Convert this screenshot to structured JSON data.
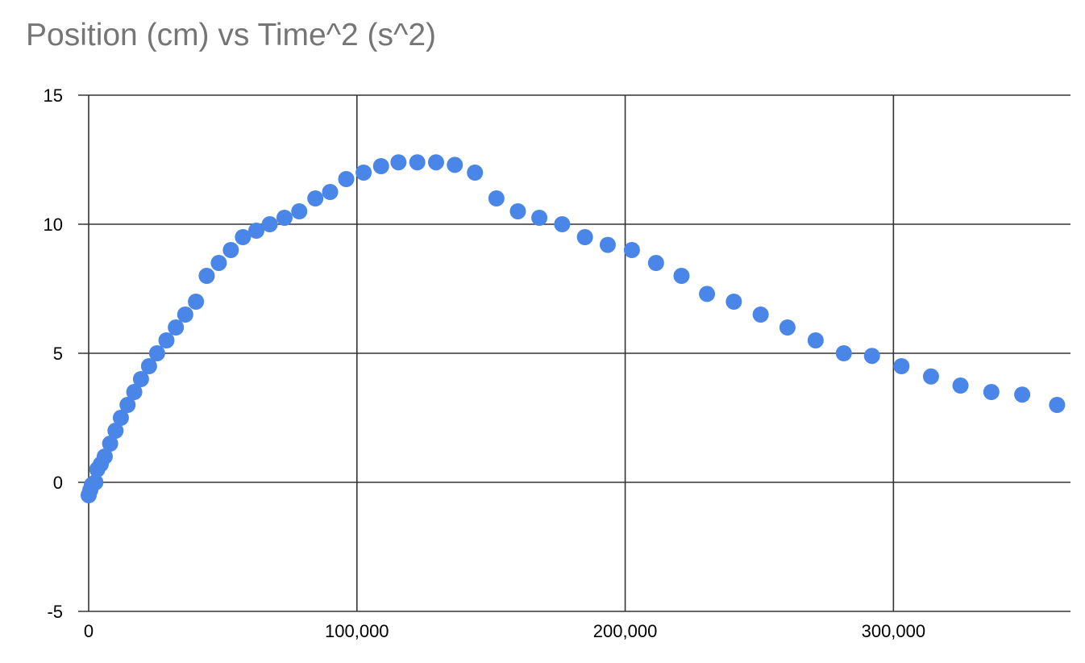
{
  "chart_data": {
    "type": "scatter",
    "title": "Position (cm) vs Time^2 (s^2)",
    "xlabel": "",
    "ylabel": "",
    "xlim": [
      0,
      366000
    ],
    "ylim": [
      -5,
      15
    ],
    "x_ticks": [
      0,
      100000,
      200000,
      300000
    ],
    "x_tick_labels": [
      "0",
      "100,000",
      "200,000",
      "300,000"
    ],
    "y_ticks": [
      -5,
      0,
      5,
      10,
      15
    ],
    "y_tick_labels": [
      "-5",
      "0",
      "5",
      "10",
      "15"
    ],
    "grid": true,
    "legend": "none",
    "point_color": "#4A86E8",
    "series": [
      {
        "points": [
          [
            0,
            -0.5
          ],
          [
            600,
            -0.3
          ],
          [
            1200,
            -0.1
          ],
          [
            2500,
            0
          ],
          [
            3200,
            0.5
          ],
          [
            4500,
            0.7
          ],
          [
            6000,
            1.0
          ],
          [
            8000,
            1.5
          ],
          [
            10000,
            2.0
          ],
          [
            12000,
            2.5
          ],
          [
            14500,
            3.0
          ],
          [
            17000,
            3.5
          ],
          [
            19500,
            4.0
          ],
          [
            22500,
            4.5
          ],
          [
            25500,
            5.0
          ],
          [
            29000,
            5.5
          ],
          [
            32500,
            6.0
          ],
          [
            36000,
            6.5
          ],
          [
            40000,
            7.0
          ],
          [
            44000,
            8.0
          ],
          [
            48500,
            8.5
          ],
          [
            53000,
            9.0
          ],
          [
            57500,
            9.5
          ],
          [
            62500,
            9.75
          ],
          [
            67500,
            10.0
          ],
          [
            73000,
            10.25
          ],
          [
            78500,
            10.5
          ],
          [
            84500,
            11.0
          ],
          [
            90000,
            11.25
          ],
          [
            96000,
            11.75
          ],
          [
            102500,
            12.0
          ],
          [
            109000,
            12.25
          ],
          [
            115500,
            12.4
          ],
          [
            122500,
            12.4
          ],
          [
            129500,
            12.4
          ],
          [
            136500,
            12.3
          ],
          [
            144000,
            12.0
          ],
          [
            152000,
            11.0
          ],
          [
            160000,
            10.5
          ],
          [
            168000,
            10.25
          ],
          [
            176500,
            10.0
          ],
          [
            185000,
            9.5
          ],
          [
            193500,
            9.2
          ],
          [
            202500,
            9.0
          ],
          [
            211500,
            8.5
          ],
          [
            221000,
            8.0
          ],
          [
            230500,
            7.3
          ],
          [
            240500,
            7.0
          ],
          [
            250500,
            6.5
          ],
          [
            260500,
            6.0
          ],
          [
            271000,
            5.5
          ],
          [
            281500,
            5.0
          ],
          [
            292000,
            4.9
          ],
          [
            303000,
            4.5
          ],
          [
            314000,
            4.1
          ],
          [
            325000,
            3.75
          ],
          [
            336500,
            3.5
          ],
          [
            348000,
            3.4
          ],
          [
            361000,
            3.0
          ]
        ]
      }
    ]
  }
}
